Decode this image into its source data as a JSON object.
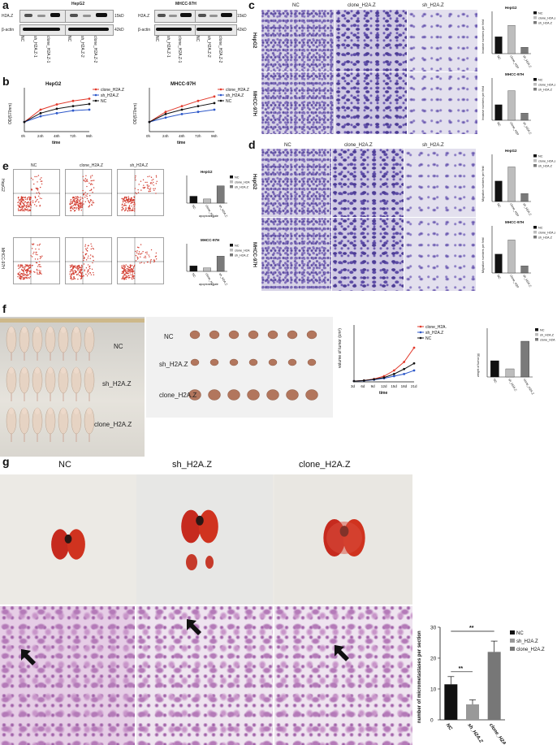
{
  "panels": {
    "a": {
      "label": "a",
      "blot1": {
        "title": "HepG2",
        "row1": "H2A.Z",
        "row2": "β-actin",
        "kd1": "15kD",
        "kd2": "42kD",
        "lanes": [
          "NC",
          "sh_H2A.Z-1",
          "clone_H2A.Z-1",
          "NC",
          "sh_H2A.Z-2",
          "clone_H2A.Z-2"
        ]
      },
      "blot2": {
        "title": "MHCC-97H",
        "row1": "H2A.Z",
        "row2": "β-actin",
        "kd1": "15kD",
        "kd2": "42kD",
        "lanes": [
          "NC",
          "sh_H2A.Z-1",
          "clone_H2A.Z-1",
          "NC",
          "sh_H2A.Z-2",
          "clone_H2A.Z-2"
        ]
      }
    },
    "b": {
      "label": "b",
      "charts": [
        {
          "title": "HepG2",
          "ylabel": "OD(570nm)",
          "xlabel": "time",
          "x": [
            "0h",
            "24h",
            "48h",
            "72h",
            "96h"
          ],
          "series": [
            {
              "name": "clone_H2A.Z",
              "color": "#e2392b",
              "values": [
                0.22,
                0.5,
                0.62,
                0.7,
                0.75
              ]
            },
            {
              "name": "sh_H2A.Z",
              "color": "#2c57c9",
              "values": [
                0.22,
                0.35,
                0.42,
                0.48,
                0.5
              ]
            },
            {
              "name": "NC",
              "color": "#111111",
              "values": [
                0.22,
                0.42,
                0.52,
                0.58,
                0.63
              ]
            }
          ],
          "ylim": [
            0,
            1.0
          ]
        },
        {
          "title": "MHCC-97H",
          "ylabel": "OD(570nm)",
          "xlabel": "time",
          "x": [
            "0h",
            "24h",
            "48h",
            "72h",
            "96h"
          ],
          "series": [
            {
              "name": "clone_H2A.Z",
              "color": "#e2392b",
              "values": [
                0.22,
                0.45,
                0.58,
                0.7,
                0.8
              ]
            },
            {
              "name": "sh_H2A.Z",
              "color": "#2c57c9",
              "values": [
                0.22,
                0.32,
                0.4,
                0.45,
                0.5
              ]
            },
            {
              "name": "NC",
              "color": "#111111",
              "values": [
                0.22,
                0.4,
                0.5,
                0.58,
                0.65
              ]
            }
          ],
          "ylim": [
            0,
            1.0
          ]
        }
      ]
    },
    "c": {
      "label": "c",
      "cols": [
        "NC",
        "clone_H2A.Z",
        "sh_H2A.Z"
      ],
      "rows": [
        "HepG2",
        "MHCC-97H"
      ],
      "bar_charts": [
        {
          "title": "HepG2",
          "categories": [
            "NC",
            "clone_H2A.Z",
            "sh_H2A.Z"
          ],
          "values": [
            120,
            200,
            45
          ],
          "colors": [
            "#111111",
            "#bdbdbd",
            "#7a7a7a"
          ],
          "ylim": [
            0,
            300
          ],
          "ylabel": "Invasive numbers per field"
        },
        {
          "title": "MHCC-97H",
          "categories": [
            "NC",
            "clone_H2A.Z",
            "sh_H2A.Z"
          ],
          "values": [
            110,
            210,
            50
          ],
          "colors": [
            "#111111",
            "#bdbdbd",
            "#7a7a7a"
          ],
          "ylim": [
            0,
            300
          ],
          "ylabel": "Invasive numbers per field"
        }
      ],
      "legend": [
        "NC",
        "clone_H2A.Z",
        "sh_H2A.Z"
      ]
    },
    "d": {
      "label": "d",
      "cols": [
        "NC",
        "clone_H2A.Z",
        "sh_H2A.Z"
      ],
      "rows": [
        "HepG2",
        "MHCC-97H"
      ],
      "bar_charts": [
        {
          "title": "HepG2",
          "categories": [
            "NC",
            "clone_H2A.Z",
            "sh_H2A.Z"
          ],
          "values": [
            130,
            220,
            50
          ],
          "colors": [
            "#111111",
            "#bdbdbd",
            "#7a7a7a"
          ],
          "ylim": [
            0,
            300
          ],
          "ylabel": "Migration numbers per field"
        },
        {
          "title": "MHCC-97H",
          "categories": [
            "NC",
            "clone_H2A.Z",
            "sh_H2A.Z"
          ],
          "values": [
            120,
            210,
            45
          ],
          "colors": [
            "#111111",
            "#bdbdbd",
            "#7a7a7a"
          ],
          "ylim": [
            0,
            300
          ],
          "ylabel": "Migration numbers per field"
        }
      ],
      "legend": [
        "NC",
        "clone_H2A.Z",
        "sh_H2A.Z"
      ]
    },
    "e": {
      "label": "e",
      "cols": [
        "NC",
        "clone_H2A.Z",
        "sh_H2A.Z"
      ],
      "rows": [
        "HepG2",
        "MHCC-97H"
      ],
      "bar_charts": [
        {
          "title": "HepG2",
          "categories": [
            "NC",
            "clone_H2A.Z",
            "sh_H2A.Z"
          ],
          "values": [
            10,
            6,
            25
          ],
          "colors": [
            "#111111",
            "#bdbdbd",
            "#7a7a7a"
          ],
          "ylim": [
            0,
            40
          ],
          "xlabel": "apoptosis rate"
        },
        {
          "title": "MHCC-97H",
          "categories": [
            "NC",
            "clone_H2A.Z",
            "sh_H2A.Z"
          ],
          "values": [
            8,
            5,
            22
          ],
          "colors": [
            "#111111",
            "#bdbdbd",
            "#7a7a7a"
          ],
          "ylim": [
            0,
            40
          ],
          "xlabel": "apoptosis rate"
        }
      ]
    },
    "f": {
      "label": "f",
      "mice_groups": [
        "NC",
        "sh_H2A.Z",
        "clone_H2A.Z"
      ],
      "tumor_groups": [
        "NC",
        "sh_H2A.Z",
        "clone_H2A.Z"
      ],
      "volume_chart": {
        "ylabel": "volume of tumor (cm³)",
        "xlabel": "time",
        "x": [
          "3d",
          "6d",
          "9d",
          "12d",
          "15d",
          "18d",
          "21d"
        ],
        "series": [
          {
            "name": "clone_H2A.Z",
            "color": "#e2392b",
            "values": [
              0.05,
              0.1,
              0.2,
              0.4,
              0.8,
              1.4,
              2.4
            ]
          },
          {
            "name": "sh_H2A.Z",
            "color": "#2c57c9",
            "values": [
              0.05,
              0.08,
              0.15,
              0.25,
              0.4,
              0.55,
              0.8
            ]
          },
          {
            "name": "NC",
            "color": "#111111",
            "values": [
              0.05,
              0.09,
              0.18,
              0.3,
              0.55,
              0.9,
              1.3
            ]
          }
        ],
        "ylim": [
          0,
          4
        ]
      },
      "weight_chart": {
        "ylabel": "weight of tumor(g)",
        "categories": [
          "NC",
          "sh_H2A.Z",
          "clone_H2A.Z"
        ],
        "values": [
          0.5,
          0.25,
          1.1
        ],
        "colors": [
          "#111111",
          "#bdbdbd",
          "#7a7a7a"
        ],
        "ylim": [
          0,
          1.5
        ],
        "legend": [
          "NC",
          "sh_H2A.Z",
          "clone_H2A.Z"
        ]
      }
    },
    "g": {
      "label": "g",
      "headers": [
        "NC",
        "sh_H2A.Z",
        "clone_H2A.Z"
      ],
      "metastases_chart": {
        "ylabel": "number of micrometastases per section",
        "categories": [
          "NC",
          "sh_H2A.Z",
          "clone_H2A.Z"
        ],
        "values": [
          11.5,
          5,
          22
        ],
        "errors": [
          2.5,
          1.5,
          3.5
        ],
        "colors": [
          "#111111",
          "#999999",
          "#777777"
        ],
        "ylim": [
          0,
          30
        ],
        "yticks": [
          0,
          10,
          20,
          30
        ],
        "legend": [
          "NC",
          "sh_H2A.Z",
          "clone_H2A.Z"
        ],
        "sig1": "**",
        "sig2": "**"
      }
    }
  }
}
